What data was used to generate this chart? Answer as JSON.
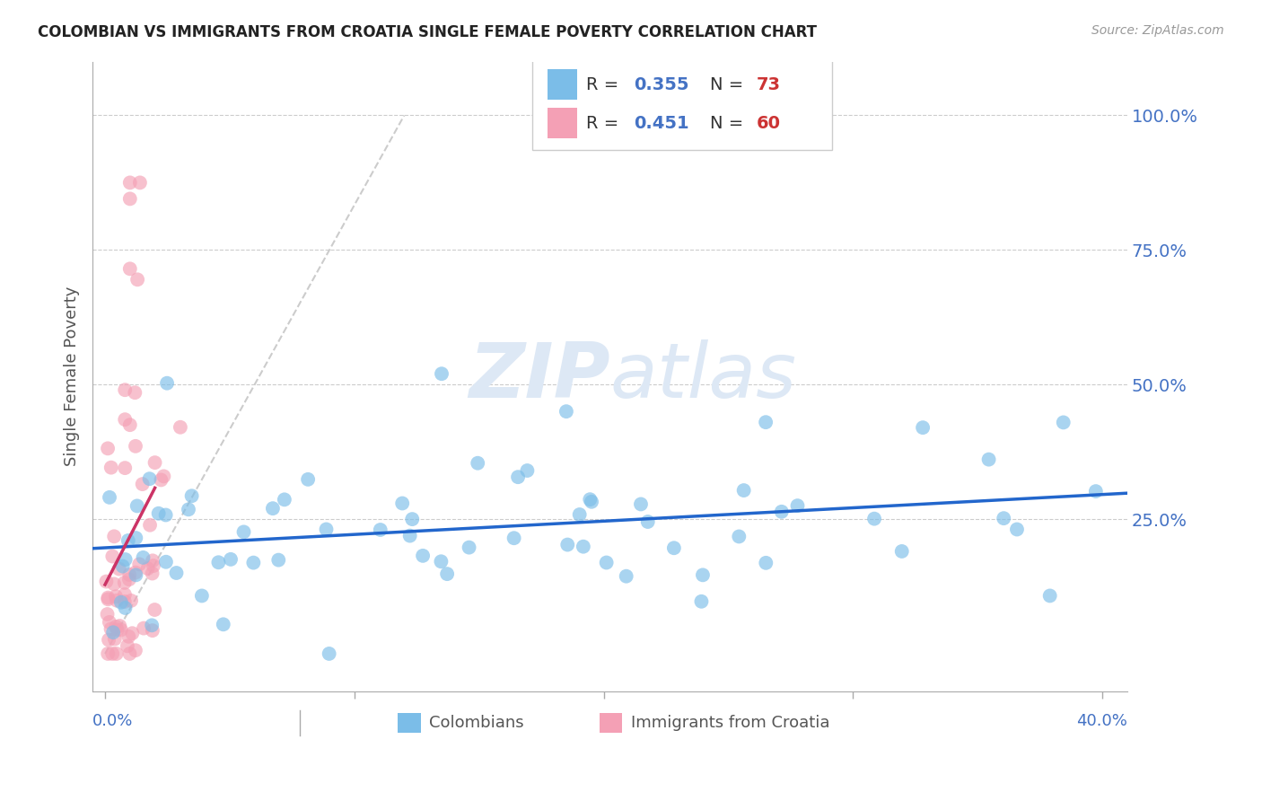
{
  "title": "COLOMBIAN VS IMMIGRANTS FROM CROATIA SINGLE FEMALE POVERTY CORRELATION CHART",
  "source": "Source: ZipAtlas.com",
  "ylabel": "Single Female Poverty",
  "ytick_labels": [
    "100.0%",
    "75.0%",
    "50.0%",
    "25.0%"
  ],
  "ytick_values": [
    1.0,
    0.75,
    0.5,
    0.25
  ],
  "xlim": [
    -0.005,
    0.41
  ],
  "ylim": [
    -0.07,
    1.1
  ],
  "colombians_R": 0.355,
  "colombians_N": 73,
  "croatia_R": 0.451,
  "croatia_N": 60,
  "blue_color": "#7bbde8",
  "pink_color": "#f4a0b5",
  "blue_line_color": "#2266cc",
  "pink_line_color": "#cc3366",
  "diagonal_color": "#cccccc",
  "watermark_color": "#dde8f5",
  "background_color": "#ffffff",
  "grid_color": "#cccccc",
  "title_color": "#222222",
  "axis_label_color": "#4472c4",
  "legend_R_color": "#4472c4",
  "legend_N_color": "#cc3333"
}
